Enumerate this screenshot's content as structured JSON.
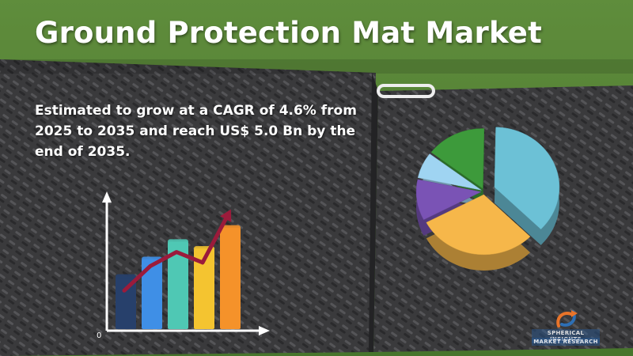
{
  "header": {
    "title": "Ground Protection Mat Market",
    "subtitle": "Estimated to grow at a CAGR of 4.6% from 2025 to 2035 and reach US$ 5.0 Bn by the end of 2035."
  },
  "logo": {
    "line1": "SPHERICAL INSIGHTS",
    "line2": "MARKET RESEARCH",
    "icon": "arrow-swirl-logo"
  },
  "colors": {
    "title_text": "#ffffff",
    "grass": "#4f7a34",
    "mat": "#3a3a3c",
    "trend_line": "#9b1b3b"
  },
  "chart_data": [
    {
      "type": "bar",
      "title": "",
      "xlabel": "",
      "ylabel": "",
      "y_tick_labels": [
        "0"
      ],
      "categories": [
        "",
        "",
        "",
        "",
        ""
      ],
      "values": [
        3,
        4,
        5,
        4.6,
        5.8
      ],
      "colors": [
        "#27406b",
        "#3f8fe6",
        "#4fc8b4",
        "#f4c430",
        "#f5922a"
      ],
      "overlay_line": {
        "values": [
          2.2,
          3.6,
          4.4,
          3.8,
          6.6
        ],
        "color": "#9b1b3b",
        "arrow": true
      },
      "grid": false
    },
    {
      "type": "pie",
      "title": "",
      "style": "3d-exploded",
      "slices": [
        {
          "label": "",
          "value": 37,
          "color": "#6cc1d6"
        },
        {
          "label": "",
          "value": 30,
          "color": "#f6b74a"
        },
        {
          "label": "",
          "value": 11,
          "color": "#7a53b5"
        },
        {
          "label": "",
          "value": 7,
          "color": "#9fd4f2"
        },
        {
          "label": "",
          "value": 15,
          "color": "#3d9a3b"
        }
      ]
    }
  ]
}
